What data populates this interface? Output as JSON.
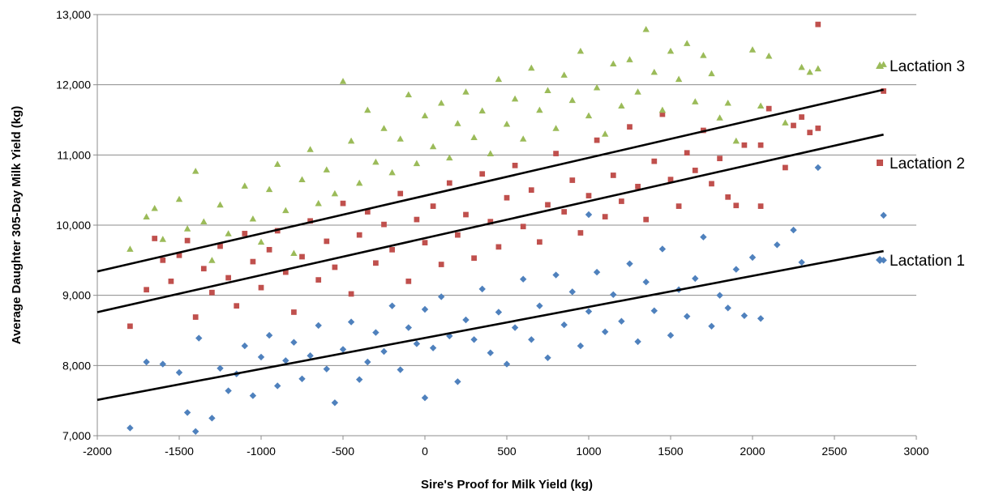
{
  "chart_data": {
    "type": "scatter",
    "title": "",
    "xlabel": "Sire's Proof for Milk Yield (kg)",
    "ylabel": "Average Daughter 305-Day Milk Yield (kg)",
    "xlim": [
      -2000,
      3000
    ],
    "ylim": [
      7000,
      13000
    ],
    "x_ticks": [
      -2000,
      -1500,
      -1000,
      -500,
      0,
      500,
      1000,
      1500,
      2000,
      2500,
      3000
    ],
    "x_tick_labels": [
      "-2000",
      "-1500",
      "-1000",
      "-500",
      "0",
      "500",
      "1000",
      "1500",
      "2000",
      "2500",
      "3000"
    ],
    "y_ticks": [
      7000,
      8000,
      9000,
      10000,
      11000,
      12000,
      13000
    ],
    "y_tick_labels": [
      "7,000",
      "8,000",
      "9,000",
      "10,000",
      "11,000",
      "12,000",
      "13,000"
    ],
    "grid": "horizontal",
    "legend_placement": "right",
    "series": [
      {
        "name": "Lactation 1",
        "marker": "diamond",
        "color": "#4F81BD",
        "trend": {
          "x": [
            -2000,
            2800
          ],
          "y": [
            7510,
            9630
          ]
        },
        "points": [
          [
            -1800,
            7110
          ],
          [
            -1700,
            8050
          ],
          [
            -1600,
            8020
          ],
          [
            -1500,
            7900
          ],
          [
            -1450,
            7330
          ],
          [
            -1400,
            7060
          ],
          [
            -1380,
            8390
          ],
          [
            -1300,
            7250
          ],
          [
            -1250,
            7960
          ],
          [
            -1200,
            7640
          ],
          [
            -1150,
            7880
          ],
          [
            -1100,
            8280
          ],
          [
            -1050,
            7570
          ],
          [
            -1000,
            8120
          ],
          [
            -950,
            8430
          ],
          [
            -900,
            7710
          ],
          [
            -850,
            8070
          ],
          [
            -800,
            8330
          ],
          [
            -750,
            7810
          ],
          [
            -700,
            8140
          ],
          [
            -650,
            8570
          ],
          [
            -600,
            7950
          ],
          [
            -550,
            7470
          ],
          [
            -500,
            8230
          ],
          [
            -450,
            8620
          ],
          [
            -400,
            7800
          ],
          [
            -350,
            8050
          ],
          [
            -300,
            8470
          ],
          [
            -250,
            8200
          ],
          [
            -200,
            8850
          ],
          [
            -150,
            7940
          ],
          [
            -100,
            8540
          ],
          [
            -50,
            8310
          ],
          [
            0,
            7540
          ],
          [
            0,
            8800
          ],
          [
            50,
            8250
          ],
          [
            100,
            8980
          ],
          [
            150,
            8420
          ],
          [
            200,
            7770
          ],
          [
            250,
            8650
          ],
          [
            300,
            8370
          ],
          [
            350,
            9090
          ],
          [
            400,
            8180
          ],
          [
            450,
            8760
          ],
          [
            500,
            8020
          ],
          [
            550,
            8540
          ],
          [
            600,
            9230
          ],
          [
            650,
            8370
          ],
          [
            700,
            8850
          ],
          [
            750,
            8110
          ],
          [
            800,
            9290
          ],
          [
            850,
            8580
          ],
          [
            900,
            9050
          ],
          [
            950,
            8280
          ],
          [
            1000,
            10150
          ],
          [
            1000,
            8770
          ],
          [
            1050,
            9330
          ],
          [
            1100,
            8480
          ],
          [
            1150,
            9010
          ],
          [
            1200,
            8630
          ],
          [
            1250,
            9450
          ],
          [
            1300,
            8340
          ],
          [
            1350,
            9190
          ],
          [
            1400,
            8780
          ],
          [
            1450,
            9660
          ],
          [
            1500,
            8430
          ],
          [
            1550,
            9080
          ],
          [
            1600,
            8700
          ],
          [
            1650,
            9240
          ],
          [
            1700,
            9830
          ],
          [
            1750,
            8560
          ],
          [
            1800,
            9000
          ],
          [
            1850,
            8820
          ],
          [
            1900,
            9370
          ],
          [
            1950,
            8710
          ],
          [
            2000,
            9540
          ],
          [
            2050,
            8670
          ],
          [
            2150,
            9720
          ],
          [
            2250,
            9930
          ],
          [
            2300,
            9470
          ],
          [
            2400,
            10820
          ],
          [
            2800,
            10140
          ],
          [
            2800,
            9500
          ]
        ]
      },
      {
        "name": "Lactation 2",
        "marker": "square",
        "color": "#C0504D",
        "trend": {
          "x": [
            -2000,
            2800
          ],
          "y": [
            8760,
            11290
          ]
        },
        "points": [
          [
            -1800,
            8560
          ],
          [
            -1700,
            9080
          ],
          [
            -1650,
            9810
          ],
          [
            -1600,
            9500
          ],
          [
            -1550,
            9200
          ],
          [
            -1500,
            9570
          ],
          [
            -1450,
            9780
          ],
          [
            -1400,
            8690
          ],
          [
            -1350,
            9380
          ],
          [
            -1300,
            9040
          ],
          [
            -1250,
            9700
          ],
          [
            -1200,
            9250
          ],
          [
            -1150,
            8850
          ],
          [
            -1100,
            9880
          ],
          [
            -1050,
            9480
          ],
          [
            -1000,
            9110
          ],
          [
            -950,
            9650
          ],
          [
            -900,
            9920
          ],
          [
            -850,
            9330
          ],
          [
            -800,
            8760
          ],
          [
            -750,
            9550
          ],
          [
            -700,
            10060
          ],
          [
            -650,
            9220
          ],
          [
            -600,
            9770
          ],
          [
            -550,
            9400
          ],
          [
            -500,
            10310
          ],
          [
            -450,
            9020
          ],
          [
            -400,
            9860
          ],
          [
            -350,
            10190
          ],
          [
            -300,
            9460
          ],
          [
            -250,
            10010
          ],
          [
            -200,
            9650
          ],
          [
            -150,
            10450
          ],
          [
            -100,
            9200
          ],
          [
            -50,
            10080
          ],
          [
            0,
            9750
          ],
          [
            50,
            10270
          ],
          [
            100,
            9440
          ],
          [
            150,
            10600
          ],
          [
            200,
            9860
          ],
          [
            250,
            10150
          ],
          [
            300,
            9530
          ],
          [
            350,
            10730
          ],
          [
            400,
            10050
          ],
          [
            450,
            9690
          ],
          [
            500,
            10390
          ],
          [
            550,
            10850
          ],
          [
            600,
            9980
          ],
          [
            650,
            10500
          ],
          [
            700,
            9760
          ],
          [
            750,
            10290
          ],
          [
            800,
            11020
          ],
          [
            850,
            10190
          ],
          [
            900,
            10640
          ],
          [
            950,
            9890
          ],
          [
            1000,
            10420
          ],
          [
            1050,
            11210
          ],
          [
            1100,
            10120
          ],
          [
            1150,
            10710
          ],
          [
            1200,
            10340
          ],
          [
            1250,
            11400
          ],
          [
            1300,
            10550
          ],
          [
            1350,
            10080
          ],
          [
            1400,
            10910
          ],
          [
            1450,
            11580
          ],
          [
            1500,
            10650
          ],
          [
            1550,
            10270
          ],
          [
            1600,
            11030
          ],
          [
            1650,
            10780
          ],
          [
            1700,
            11350
          ],
          [
            1750,
            10590
          ],
          [
            1800,
            10950
          ],
          [
            1850,
            10400
          ],
          [
            1900,
            10280
          ],
          [
            1950,
            11140
          ],
          [
            2050,
            11140
          ],
          [
            2050,
            10270
          ],
          [
            2100,
            11660
          ],
          [
            2200,
            10820
          ],
          [
            2250,
            11420
          ],
          [
            2300,
            11540
          ],
          [
            2350,
            11320
          ],
          [
            2400,
            11380
          ],
          [
            2400,
            12860
          ],
          [
            2800,
            11910
          ]
        ]
      },
      {
        "name": "Lactation 3",
        "marker": "triangle",
        "color": "#9BBB59",
        "trend": {
          "x": [
            -2000,
            2800
          ],
          "y": [
            9340,
            11930
          ]
        },
        "points": [
          [
            -1800,
            9660
          ],
          [
            -1700,
            10120
          ],
          [
            -1650,
            10240
          ],
          [
            -1600,
            9800
          ],
          [
            -1500,
            10370
          ],
          [
            -1450,
            9950
          ],
          [
            -1400,
            10770
          ],
          [
            -1350,
            10050
          ],
          [
            -1300,
            9500
          ],
          [
            -1250,
            10290
          ],
          [
            -1200,
            9880
          ],
          [
            -1100,
            10560
          ],
          [
            -1050,
            10090
          ],
          [
            -1000,
            9760
          ],
          [
            -950,
            10510
          ],
          [
            -900,
            10870
          ],
          [
            -850,
            10210
          ],
          [
            -800,
            9600
          ],
          [
            -750,
            10650
          ],
          [
            -700,
            11080
          ],
          [
            -650,
            10310
          ],
          [
            -600,
            10790
          ],
          [
            -550,
            10450
          ],
          [
            -500,
            12050
          ],
          [
            -450,
            11200
          ],
          [
            -400,
            10600
          ],
          [
            -350,
            11640
          ],
          [
            -300,
            10900
          ],
          [
            -250,
            11380
          ],
          [
            -200,
            10750
          ],
          [
            -150,
            11230
          ],
          [
            -100,
            11860
          ],
          [
            -50,
            10880
          ],
          [
            0,
            11560
          ],
          [
            50,
            11120
          ],
          [
            100,
            11740
          ],
          [
            150,
            10960
          ],
          [
            200,
            11450
          ],
          [
            250,
            11900
          ],
          [
            300,
            11250
          ],
          [
            350,
            11630
          ],
          [
            400,
            11020
          ],
          [
            450,
            12080
          ],
          [
            500,
            11440
          ],
          [
            550,
            11800
          ],
          [
            600,
            11230
          ],
          [
            650,
            12240
          ],
          [
            700,
            11640
          ],
          [
            750,
            11920
          ],
          [
            800,
            11380
          ],
          [
            850,
            12140
          ],
          [
            900,
            11780
          ],
          [
            950,
            12480
          ],
          [
            1000,
            11560
          ],
          [
            1050,
            11960
          ],
          [
            1100,
            11300
          ],
          [
            1150,
            12300
          ],
          [
            1200,
            11700
          ],
          [
            1250,
            12360
          ],
          [
            1300,
            11900
          ],
          [
            1350,
            12790
          ],
          [
            1400,
            12180
          ],
          [
            1450,
            11640
          ],
          [
            1500,
            12480
          ],
          [
            1550,
            12080
          ],
          [
            1600,
            12590
          ],
          [
            1650,
            11760
          ],
          [
            1700,
            12420
          ],
          [
            1750,
            12160
          ],
          [
            1800,
            11530
          ],
          [
            1850,
            11740
          ],
          [
            1900,
            11200
          ],
          [
            2000,
            12500
          ],
          [
            2050,
            11700
          ],
          [
            2100,
            12410
          ],
          [
            2200,
            11460
          ],
          [
            2300,
            12250
          ],
          [
            2350,
            12180
          ],
          [
            2400,
            12230
          ],
          [
            2800,
            12290
          ]
        ]
      }
    ]
  }
}
